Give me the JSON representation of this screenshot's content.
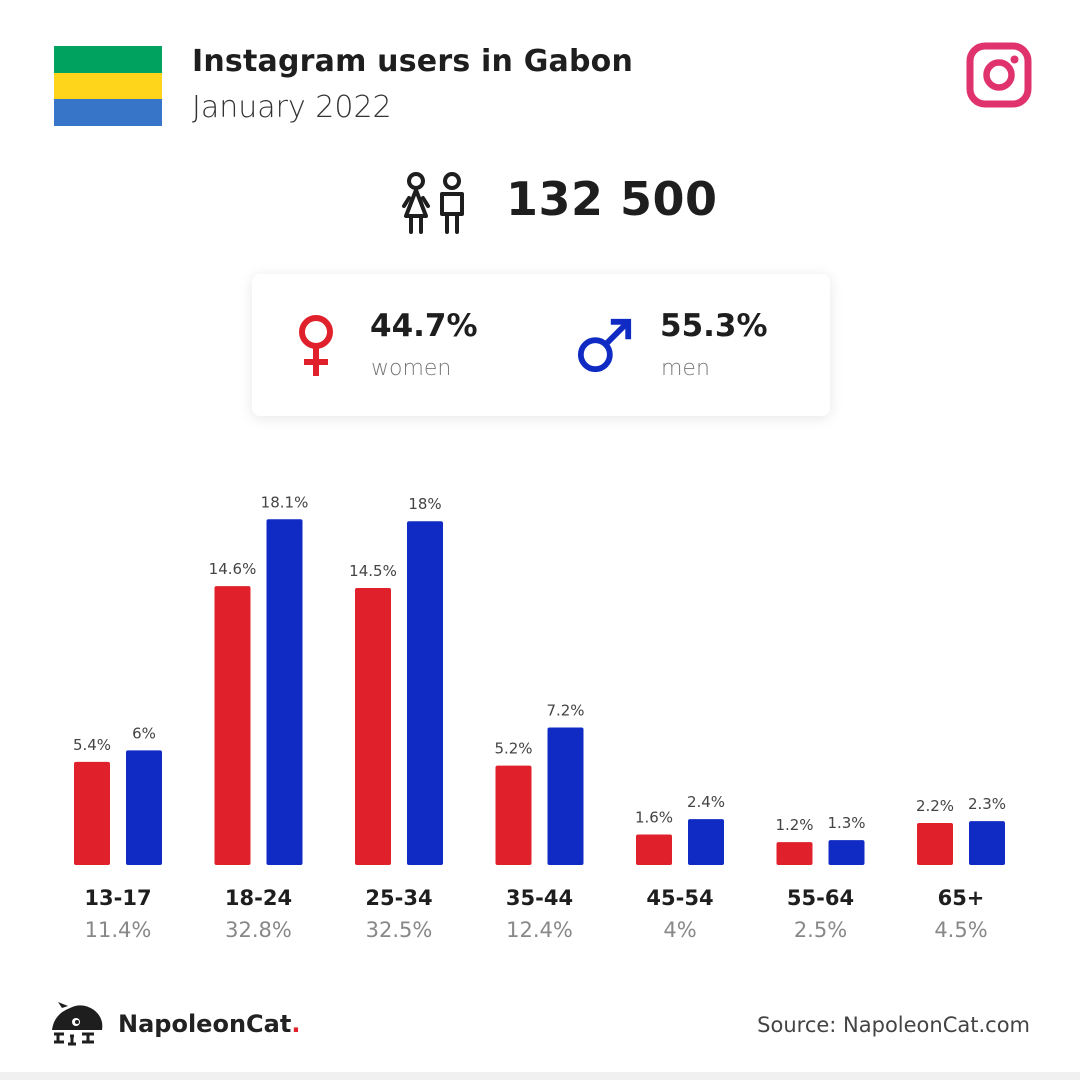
{
  "header": {
    "title": "Instagram users in Gabon",
    "subtitle": "January 2022",
    "flag_colors": [
      "#00A25F",
      "#FFD51B",
      "#3675C8"
    ],
    "platform_icon": "instagram-icon",
    "platform_color": "#E0336E"
  },
  "total": {
    "icon": "users-icon",
    "value": "132 500"
  },
  "gender": {
    "women": {
      "icon": "female-icon",
      "percent": "44.7%",
      "label": "women",
      "color": "#E0202A"
    },
    "men": {
      "icon": "male-icon",
      "percent": "55.3%",
      "label": "men",
      "color": "#0F2BC4"
    }
  },
  "chart_data": {
    "type": "bar",
    "categories": [
      "13-17",
      "18-24",
      "25-34",
      "35-44",
      "45-54",
      "55-64",
      "65+"
    ],
    "category_totals": [
      "11.4%",
      "32.8%",
      "32.5%",
      "12.4%",
      "4%",
      "2.5%",
      "4.5%"
    ],
    "series": [
      {
        "name": "women",
        "color": "#E0202A",
        "values": [
          5.4,
          14.6,
          14.5,
          5.2,
          1.6,
          1.2,
          2.2
        ],
        "labels": [
          "5.4%",
          "14.6%",
          "14.5%",
          "5.2%",
          "1.6%",
          "1.2%",
          "2.2%"
        ]
      },
      {
        "name": "men",
        "color": "#0F2BC4",
        "values": [
          6,
          18.1,
          18,
          7.2,
          2.4,
          1.3,
          2.3
        ],
        "labels": [
          "6%",
          "18.1%",
          "18%",
          "7.2%",
          "2.4%",
          "1.3%",
          "2.3%"
        ]
      }
    ],
    "title": "",
    "xlabel": "",
    "ylabel": "",
    "grid": false,
    "legend": "none"
  },
  "footer": {
    "brand_name": "NapoleonCat",
    "brand_dot": ".",
    "source": "Source: NapoleonCat.com",
    "logo_icon": "napoleoncat-logo-icon"
  }
}
